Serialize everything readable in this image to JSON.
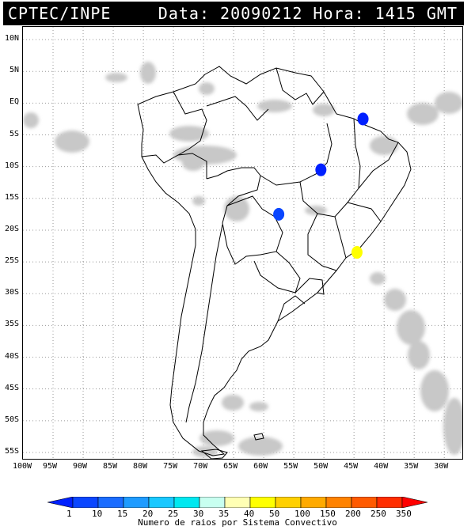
{
  "header": {
    "source": "CPTEC/INPE",
    "datetime": "Data: 20090212 Hora: 1415 GMT"
  },
  "axes": {
    "lat_labels": [
      "10N",
      "5N",
      "EQ",
      "5S",
      "10S",
      "15S",
      "20S",
      "25S",
      "30S",
      "35S",
      "40S",
      "45S",
      "50S",
      "55S"
    ],
    "lon_labels": [
      "100W",
      "95W",
      "90W",
      "85W",
      "80W",
      "75W",
      "70W",
      "65W",
      "60W",
      "55W",
      "50W",
      "45W",
      "40W",
      "35W",
      "30W"
    ]
  },
  "colorbar": {
    "title": "Numero de raios por Sistema Convectivo",
    "labels": [
      "1",
      "10",
      "15",
      "20",
      "25",
      "30",
      "35",
      "40",
      "50",
      "100",
      "150",
      "200",
      "250",
      "350"
    ],
    "colors": [
      "#0020ff",
      "#0a46ff",
      "#1a6cff",
      "#1e9bff",
      "#19c8ff",
      "#00e8f0",
      "#c8fff0",
      "#ffffb4",
      "#ffff00",
      "#ffd000",
      "#ffaa00",
      "#ff8200",
      "#ff5a00",
      "#ff2d00",
      "#ff0000"
    ]
  },
  "map_features": {
    "lightning_systems": [
      {
        "lon": -43.5,
        "lat": -2.5,
        "color": "#0020ff"
      },
      {
        "lon": -50.5,
        "lat": -10.5,
        "color": "#0020ff"
      },
      {
        "lon": -57.5,
        "lat": -17.5,
        "color": "#0a46ff"
      },
      {
        "lon": -44.5,
        "lat": -23.5,
        "color": "#ffff00"
      }
    ]
  }
}
